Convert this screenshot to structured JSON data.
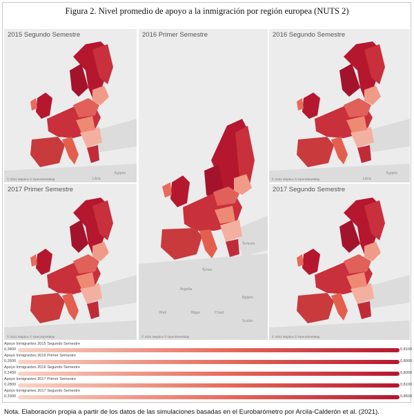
{
  "figure": {
    "title": "Figura 2. Nivel promedio de apoyo a la inmigración por región europea (NUTS 2)",
    "note": "Nota. Elaboración propia a partir de los datos de las simulaciones basadas en el Eurobarómetro por Arcila-Calderón et al. (2021)."
  },
  "panels": [
    {
      "label": "2015 Segundo Semestre",
      "attribution": "© 2021 Mapbox © OpenStreetMap"
    },
    {
      "label": "2016 Primer Semestre",
      "attribution": "© 2021 Mapbox © OpenStreetMap"
    },
    {
      "label": "2016 Segundo Semestre",
      "attribution": "© 2021 Mapbox © OpenStreetMap"
    },
    {
      "label": "2017 Primer Semestre",
      "attribution": "© 2021 Mapbox © OpenStreetMap"
    },
    {
      "label": "2017 Segundo Semestre",
      "attribution": "© 2021 Mapbox © OpenStreetMap"
    }
  ],
  "legends": [
    {
      "name": "Apoyo Inmigrantes 2015 Segundo Semestre",
      "min": "0,3400",
      "max": "0,8100"
    },
    {
      "name": "Apoyo Inmigrantes 2016 Primer Semestre",
      "min": "0,2600",
      "max": "0,8000"
    },
    {
      "name": "Apoyo Inmigrantes 2016 Segundo Semestre",
      "min": "0,2400",
      "max": "0,8000"
    },
    {
      "name": "Apoyo Inmigrantes 2017 Primer Semestre",
      "min": "0,2800",
      "max": "0,8100"
    },
    {
      "name": "Apoyo Inmigrantes 2017 Segundo Semestre",
      "min": "0,3300",
      "max": "0,8600"
    }
  ],
  "colors": {
    "low": "#f8d4c6",
    "mid": "#e76a5a",
    "high": "#b5172f",
    "darkest": "#8e0f24",
    "land": "#dcdcdc",
    "sea": "#ececec"
  },
  "map_labels": [
    "Libia",
    "Egipto",
    "Argelia",
    "Túnez",
    "Turquía",
    "Sudán",
    "Chad",
    "Níger",
    "Mali"
  ]
}
